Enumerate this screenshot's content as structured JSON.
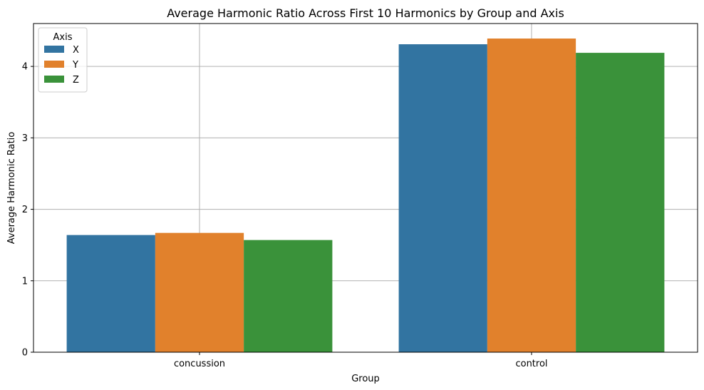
{
  "chart_data": {
    "type": "bar",
    "title": "Average Harmonic Ratio Across First 10 Harmonics by Group and Axis",
    "xlabel": "Group",
    "ylabel": "Average Harmonic Ratio",
    "categories": [
      "concussion",
      "control"
    ],
    "series": [
      {
        "name": "X",
        "color": "#3274a1",
        "values": [
          1.64,
          4.31
        ]
      },
      {
        "name": "Y",
        "color": "#e1812c",
        "values": [
          1.67,
          4.39
        ]
      },
      {
        "name": "Z",
        "color": "#3a923a",
        "values": [
          1.57,
          4.19
        ]
      }
    ],
    "ylim": [
      0,
      4.6
    ],
    "yticks": [
      0,
      1,
      2,
      3,
      4
    ],
    "grid": true,
    "legend": {
      "title": "Axis",
      "position": "upper left"
    }
  }
}
